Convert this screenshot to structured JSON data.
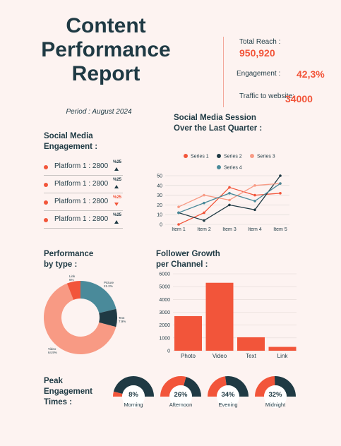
{
  "header": {
    "title_lines": [
      "Content",
      "Performance",
      "Report"
    ],
    "period": "Period : August 2024"
  },
  "stats": {
    "reach_label": "Total Reach :",
    "reach_value": "950,920",
    "engagement_label": "Engagement :",
    "engagement_value": "42,3%",
    "traffic_label": "Traffic to website:",
    "traffic_value": "34000"
  },
  "engagement": {
    "title_lines": [
      "Social Media",
      "Engagement :"
    ],
    "platforms": [
      {
        "label": "Platform 1 : 2800",
        "pct": "%25",
        "trend": "up"
      },
      {
        "label": "Platform 1 : 2800",
        "pct": "%25",
        "trend": "up"
      },
      {
        "label": "Platform 1 : 2800",
        "pct": "%25",
        "trend": "down"
      },
      {
        "label": "Platform 1 : 2800",
        "pct": "%25",
        "trend": "up"
      }
    ]
  },
  "colors": {
    "accent": "#f2553a",
    "dark": "#1f3a44",
    "salmon": "#f89a84",
    "teal": "#4a8a9a",
    "background": "#fdf3f1"
  },
  "chart_data": [
    {
      "type": "line",
      "title_lines": [
        "Social Media Session",
        "Over the Last Quarter :"
      ],
      "categories": [
        "Item 1",
        "Item 2",
        "Item 3",
        "Item 4",
        "Item 5"
      ],
      "ylim": [
        0,
        50
      ],
      "yticks": [
        0,
        10,
        20,
        30,
        40,
        50
      ],
      "legend_placement": "top",
      "grid": true,
      "series": [
        {
          "name": "Series 1",
          "color": "#f2553a",
          "values": [
            0,
            12,
            38,
            30,
            32
          ]
        },
        {
          "name": "Series 2",
          "color": "#1f3a44",
          "values": [
            12,
            4,
            20,
            15,
            50
          ]
        },
        {
          "name": "Series 3",
          "color": "#f89a84",
          "values": [
            18,
            30,
            25,
            40,
            42
          ]
        },
        {
          "name": "Series 4",
          "color": "#4a8a9a",
          "values": [
            12,
            22,
            32,
            24,
            42
          ]
        }
      ]
    },
    {
      "type": "pie",
      "title_lines": [
        "Performance",
        "by type :"
      ],
      "donut": true,
      "slices": [
        {
          "name": "Picture",
          "value": 21.2,
          "label": "21.2%",
          "color": "#4a8a9a"
        },
        {
          "name": "Text",
          "value": 7.9,
          "label": "7.9%",
          "color": "#1f3a44"
        },
        {
          "name": "Video",
          "value": 64.9,
          "label": "64.9%",
          "color": "#f89a84"
        },
        {
          "name": "Link",
          "value": 6,
          "label": "6%",
          "color": "#f2553a"
        }
      ]
    },
    {
      "type": "bar",
      "title_lines": [
        "Follower Growth",
        "per Channel :"
      ],
      "categories": [
        "Photo",
        "Video",
        "Text",
        "Link"
      ],
      "values": [
        2700,
        5300,
        1050,
        300
      ],
      "ylim": [
        0,
        6000
      ],
      "yticks": [
        0,
        1000,
        2000,
        3000,
        4000,
        5000,
        6000
      ],
      "color": "#f2553a",
      "grid": true
    },
    {
      "type": "gauge",
      "title_lines": [
        "Peak",
        "Engagement",
        "Times :"
      ],
      "items": [
        {
          "name": "Morning",
          "value": 8,
          "label": "8%"
        },
        {
          "name": "Afternoon",
          "value": 26,
          "label": "26%"
        },
        {
          "name": "Evening",
          "value": 34,
          "label": "34%"
        },
        {
          "name": "Midnight",
          "value": 32,
          "label": "32%"
        }
      ]
    }
  ]
}
